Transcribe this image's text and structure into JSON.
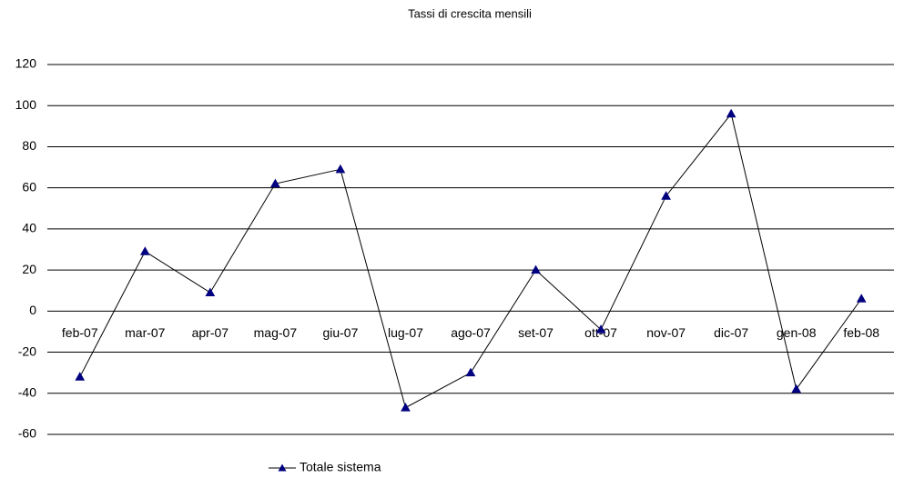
{
  "chart_data": {
    "type": "line",
    "title": "Tassi di crescita mensili",
    "categories": [
      "feb-07",
      "mar-07",
      "apr-07",
      "mag-07",
      "giu-07",
      "lug-07",
      "ago-07",
      "set-07",
      "ott-07",
      "nov-07",
      "dic-07",
      "gen-08",
      "feb-08"
    ],
    "series": [
      {
        "name": "Totale sistema",
        "color": "#000000",
        "marker_color": "#000080",
        "values": [
          -32,
          29,
          9,
          62,
          69,
          -47,
          -30,
          20,
          -9,
          56,
          96,
          -38,
          6
        ]
      }
    ],
    "ylim": [
      -60,
      120
    ],
    "yticks": [
      -60,
      -40,
      -20,
      0,
      20,
      40,
      60,
      80,
      100,
      120
    ],
    "grid": true
  }
}
